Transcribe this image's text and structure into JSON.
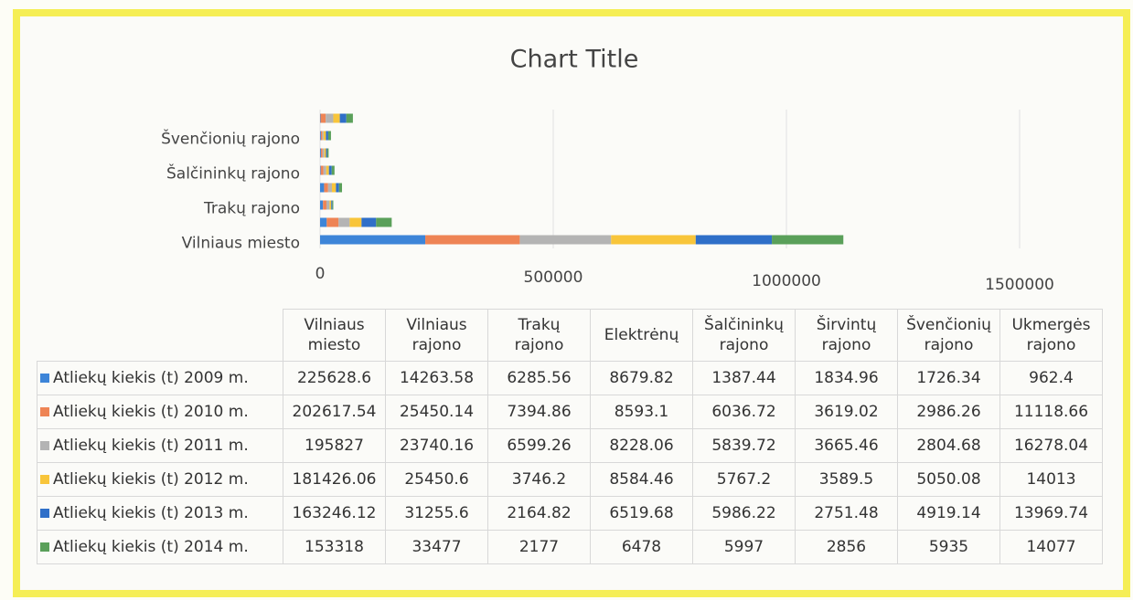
{
  "chart_data": {
    "type": "bar",
    "orientation": "horizontal",
    "stacked": true,
    "title": "Chart Title",
    "categories": [
      "Vilniaus miesto",
      "Vilniaus rajono",
      "Trakų rajono",
      "Elektrėnų",
      "Šalčininkų rajono",
      "Širvintų rajono",
      "Švenčionių rajono",
      "Ukmergės rajono"
    ],
    "series": [
      {
        "name": "Atliekų kiekis (t) 2009 m.",
        "color": "#3d85d8",
        "values": [
          225628.6,
          14263.58,
          6285.56,
          8679.82,
          1387.44,
          1834.96,
          1726.34,
          962.4
        ]
      },
      {
        "name": "Atliekų kiekis (t) 2010 m.",
        "color": "#ee8455",
        "values": [
          202617.54,
          25450.14,
          7394.86,
          8593.1,
          6036.72,
          3619.02,
          2986.26,
          11118.66
        ]
      },
      {
        "name": "Atliekų kiekis (t) 2011 m.",
        "color": "#b4b4b4",
        "values": [
          195827,
          23740.16,
          6599.26,
          8228.06,
          5839.72,
          3665.46,
          2804.68,
          16278.04
        ]
      },
      {
        "name": "Atliekų kiekis (t) 2012 m.",
        "color": "#f8c53a",
        "values": [
          181426.06,
          25450.6,
          3746.2,
          8584.46,
          5767.2,
          3589.5,
          5050.08,
          14013
        ]
      },
      {
        "name": "Atliekų kiekis (t) 2013 m.",
        "color": "#2f6fc8",
        "values": [
          163246.12,
          31255.6,
          2164.82,
          6519.68,
          5986.22,
          2751.48,
          4919.14,
          13969.74
        ]
      },
      {
        "name": "Atliekų kiekis (t) 2014 m.",
        "color": "#5aa05a",
        "values": [
          153318,
          33477,
          2177,
          6478,
          5997,
          2856,
          5935,
          14077
        ]
      }
    ],
    "xlim": [
      0,
      1500000
    ],
    "xticks": [
      0,
      500000,
      1000000,
      1500000
    ],
    "grid": true,
    "data_table": true
  }
}
